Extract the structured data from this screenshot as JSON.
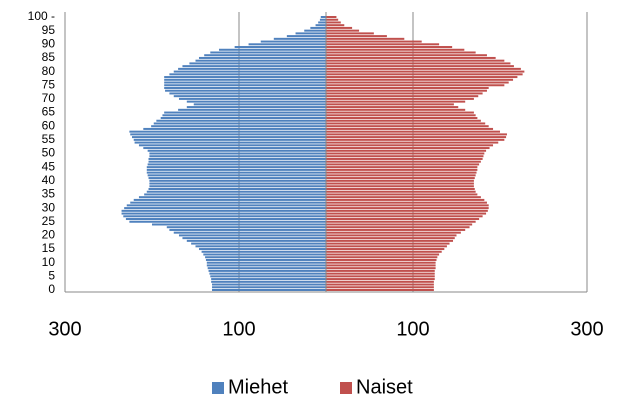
{
  "chart_data": {
    "type": "pyramid",
    "categories": [
      "0",
      null,
      null,
      null,
      null,
      "5",
      null,
      null,
      null,
      null,
      "10",
      null,
      null,
      null,
      null,
      "15",
      null,
      null,
      null,
      null,
      "20",
      null,
      null,
      null,
      null,
      "25",
      null,
      null,
      null,
      null,
      "30",
      null,
      null,
      null,
      null,
      "35",
      null,
      null,
      null,
      null,
      "40",
      null,
      null,
      null,
      null,
      "45",
      null,
      null,
      null,
      null,
      "50",
      null,
      null,
      null,
      null,
      "55",
      null,
      null,
      null,
      null,
      "60",
      null,
      null,
      null,
      null,
      "65",
      null,
      null,
      null,
      null,
      "70",
      null,
      null,
      null,
      null,
      "75",
      null,
      null,
      null,
      null,
      "80",
      null,
      null,
      null,
      null,
      "85",
      null,
      null,
      null,
      null,
      "90",
      null,
      null,
      null,
      null,
      "95",
      null,
      null,
      null,
      null,
      "100 -"
    ],
    "series": [
      {
        "name": "Miehet",
        "color": "#4f81bd",
        "values": [
          -131,
          -131,
          -131,
          -132,
          -132,
          -133,
          -134,
          -135,
          -136,
          -137,
          -137,
          -138,
          -139,
          -141,
          -143,
          -146,
          -150,
          -155,
          -160,
          -165,
          -169,
          -175,
          -180,
          -183,
          -200,
          -226,
          -230,
          -233,
          -235,
          -235,
          -232,
          -229,
          -225,
          -221,
          -215,
          -209,
          -206,
          -204,
          -203,
          -203,
          -203,
          -204,
          -205,
          -206,
          -206,
          -206,
          -205,
          -204,
          -204,
          -203,
          -203,
          -205,
          -210,
          -215,
          -220,
          -221,
          -223,
          -225,
          -226,
          -210,
          -201,
          -198,
          -195,
          -190,
          -188,
          -186,
          -170,
          -160,
          -152,
          -160,
          -169,
          -175,
          -180,
          -185,
          -186,
          -186,
          -186,
          -186,
          -186,
          -180,
          -175,
          -170,
          -165,
          -157,
          -150,
          -146,
          -140,
          -133,
          -123,
          -105,
          -89,
          -75,
          -60,
          -45,
          -35,
          -25,
          -18,
          -12,
          -9,
          -7,
          -6
        ]
      },
      {
        "name": "Naiset",
        "color": "#c0504d",
        "values": [
          124,
          124,
          124,
          124,
          125,
          125,
          125,
          125,
          126,
          126,
          126,
          127,
          128,
          130,
          133,
          136,
          139,
          142,
          146,
          148,
          150,
          155,
          160,
          165,
          168,
          172,
          176,
          180,
          184,
          186,
          187,
          187,
          185,
          182,
          178,
          174,
          172,
          171,
          170,
          170,
          170,
          171,
          172,
          173,
          174,
          174,
          176,
          178,
          180,
          181,
          182,
          184,
          188,
          192,
          198,
          205,
          207,
          208,
          200,
          192,
          187,
          183,
          178,
          174,
          172,
          170,
          160,
          152,
          147,
          160,
          170,
          175,
          180,
          185,
          187,
          205,
          210,
          215,
          220,
          226,
          228,
          224,
          216,
          212,
          205,
          195,
          185,
          172,
          159,
          145,
          130,
          110,
          90,
          70,
          55,
          38,
          30,
          21,
          17,
          14,
          12
        ]
      }
    ],
    "xlim": [
      -300,
      300
    ],
    "xticks": [
      {
        "value": -300,
        "label": "300"
      },
      {
        "value": -100,
        "label": "100"
      },
      {
        "value": 100,
        "label": "100"
      },
      {
        "value": 300,
        "label": "300"
      }
    ],
    "grid": true
  }
}
